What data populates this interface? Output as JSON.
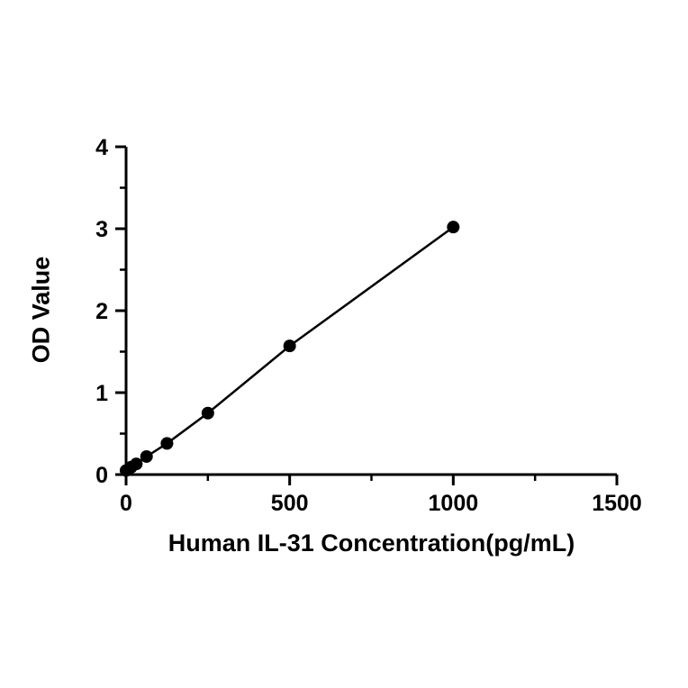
{
  "chart_data": {
    "type": "scatter",
    "title": "",
    "xlabel": "Human IL-31 Concentration(pg/mL)",
    "ylabel": "OD Value",
    "x": [
      0,
      15.6,
      31.25,
      62.5,
      125,
      250,
      500,
      1000
    ],
    "y": [
      0.05,
      0.09,
      0.13,
      0.22,
      0.38,
      0.75,
      1.57,
      3.02
    ],
    "xlim": [
      0,
      1500
    ],
    "ylim": [
      0,
      4
    ],
    "x_ticks": [
      0,
      500,
      1000,
      1500
    ],
    "y_ticks": [
      0,
      1,
      2,
      3,
      4
    ],
    "x_minor_step": 250,
    "y_minor_step": 0.5,
    "line_color": "#000000",
    "marker_color": "#000000",
    "axis_color": "#000000",
    "background": "#ffffff",
    "grid": false,
    "legend": "none",
    "connect_points": true
  }
}
